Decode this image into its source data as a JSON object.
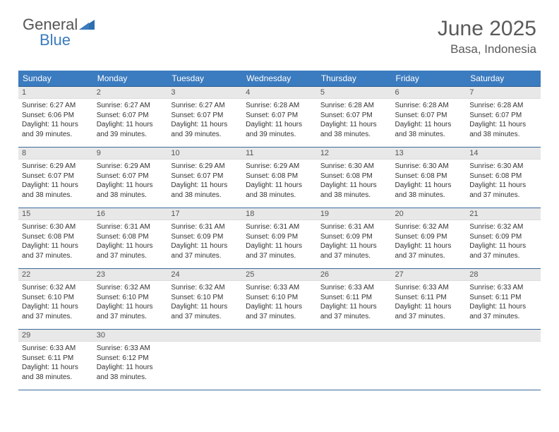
{
  "brand": {
    "line1": "General",
    "line2": "Blue"
  },
  "title": "June 2025",
  "location": "Basa, Indonesia",
  "colors": {
    "header_bg": "#3b7bbf",
    "header_text": "#ffffff",
    "daynum_bg": "#e8e8e8",
    "row_border": "#3b6a9a",
    "body_text": "#333333",
    "title_text": "#5a5a5a"
  },
  "weekdays": [
    "Sunday",
    "Monday",
    "Tuesday",
    "Wednesday",
    "Thursday",
    "Friday",
    "Saturday"
  ],
  "weeks": [
    [
      {
        "n": "1",
        "sr": "Sunrise: 6:27 AM",
        "ss": "Sunset: 6:06 PM",
        "d1": "Daylight: 11 hours",
        "d2": "and 39 minutes."
      },
      {
        "n": "2",
        "sr": "Sunrise: 6:27 AM",
        "ss": "Sunset: 6:07 PM",
        "d1": "Daylight: 11 hours",
        "d2": "and 39 minutes."
      },
      {
        "n": "3",
        "sr": "Sunrise: 6:27 AM",
        "ss": "Sunset: 6:07 PM",
        "d1": "Daylight: 11 hours",
        "d2": "and 39 minutes."
      },
      {
        "n": "4",
        "sr": "Sunrise: 6:28 AM",
        "ss": "Sunset: 6:07 PM",
        "d1": "Daylight: 11 hours",
        "d2": "and 39 minutes."
      },
      {
        "n": "5",
        "sr": "Sunrise: 6:28 AM",
        "ss": "Sunset: 6:07 PM",
        "d1": "Daylight: 11 hours",
        "d2": "and 38 minutes."
      },
      {
        "n": "6",
        "sr": "Sunrise: 6:28 AM",
        "ss": "Sunset: 6:07 PM",
        "d1": "Daylight: 11 hours",
        "d2": "and 38 minutes."
      },
      {
        "n": "7",
        "sr": "Sunrise: 6:28 AM",
        "ss": "Sunset: 6:07 PM",
        "d1": "Daylight: 11 hours",
        "d2": "and 38 minutes."
      }
    ],
    [
      {
        "n": "8",
        "sr": "Sunrise: 6:29 AM",
        "ss": "Sunset: 6:07 PM",
        "d1": "Daylight: 11 hours",
        "d2": "and 38 minutes."
      },
      {
        "n": "9",
        "sr": "Sunrise: 6:29 AM",
        "ss": "Sunset: 6:07 PM",
        "d1": "Daylight: 11 hours",
        "d2": "and 38 minutes."
      },
      {
        "n": "10",
        "sr": "Sunrise: 6:29 AM",
        "ss": "Sunset: 6:07 PM",
        "d1": "Daylight: 11 hours",
        "d2": "and 38 minutes."
      },
      {
        "n": "11",
        "sr": "Sunrise: 6:29 AM",
        "ss": "Sunset: 6:08 PM",
        "d1": "Daylight: 11 hours",
        "d2": "and 38 minutes."
      },
      {
        "n": "12",
        "sr": "Sunrise: 6:30 AM",
        "ss": "Sunset: 6:08 PM",
        "d1": "Daylight: 11 hours",
        "d2": "and 38 minutes."
      },
      {
        "n": "13",
        "sr": "Sunrise: 6:30 AM",
        "ss": "Sunset: 6:08 PM",
        "d1": "Daylight: 11 hours",
        "d2": "and 38 minutes."
      },
      {
        "n": "14",
        "sr": "Sunrise: 6:30 AM",
        "ss": "Sunset: 6:08 PM",
        "d1": "Daylight: 11 hours",
        "d2": "and 37 minutes."
      }
    ],
    [
      {
        "n": "15",
        "sr": "Sunrise: 6:30 AM",
        "ss": "Sunset: 6:08 PM",
        "d1": "Daylight: 11 hours",
        "d2": "and 37 minutes."
      },
      {
        "n": "16",
        "sr": "Sunrise: 6:31 AM",
        "ss": "Sunset: 6:08 PM",
        "d1": "Daylight: 11 hours",
        "d2": "and 37 minutes."
      },
      {
        "n": "17",
        "sr": "Sunrise: 6:31 AM",
        "ss": "Sunset: 6:09 PM",
        "d1": "Daylight: 11 hours",
        "d2": "and 37 minutes."
      },
      {
        "n": "18",
        "sr": "Sunrise: 6:31 AM",
        "ss": "Sunset: 6:09 PM",
        "d1": "Daylight: 11 hours",
        "d2": "and 37 minutes."
      },
      {
        "n": "19",
        "sr": "Sunrise: 6:31 AM",
        "ss": "Sunset: 6:09 PM",
        "d1": "Daylight: 11 hours",
        "d2": "and 37 minutes."
      },
      {
        "n": "20",
        "sr": "Sunrise: 6:32 AM",
        "ss": "Sunset: 6:09 PM",
        "d1": "Daylight: 11 hours",
        "d2": "and 37 minutes."
      },
      {
        "n": "21",
        "sr": "Sunrise: 6:32 AM",
        "ss": "Sunset: 6:09 PM",
        "d1": "Daylight: 11 hours",
        "d2": "and 37 minutes."
      }
    ],
    [
      {
        "n": "22",
        "sr": "Sunrise: 6:32 AM",
        "ss": "Sunset: 6:10 PM",
        "d1": "Daylight: 11 hours",
        "d2": "and 37 minutes."
      },
      {
        "n": "23",
        "sr": "Sunrise: 6:32 AM",
        "ss": "Sunset: 6:10 PM",
        "d1": "Daylight: 11 hours",
        "d2": "and 37 minutes."
      },
      {
        "n": "24",
        "sr": "Sunrise: 6:32 AM",
        "ss": "Sunset: 6:10 PM",
        "d1": "Daylight: 11 hours",
        "d2": "and 37 minutes."
      },
      {
        "n": "25",
        "sr": "Sunrise: 6:33 AM",
        "ss": "Sunset: 6:10 PM",
        "d1": "Daylight: 11 hours",
        "d2": "and 37 minutes."
      },
      {
        "n": "26",
        "sr": "Sunrise: 6:33 AM",
        "ss": "Sunset: 6:11 PM",
        "d1": "Daylight: 11 hours",
        "d2": "and 37 minutes."
      },
      {
        "n": "27",
        "sr": "Sunrise: 6:33 AM",
        "ss": "Sunset: 6:11 PM",
        "d1": "Daylight: 11 hours",
        "d2": "and 37 minutes."
      },
      {
        "n": "28",
        "sr": "Sunrise: 6:33 AM",
        "ss": "Sunset: 6:11 PM",
        "d1": "Daylight: 11 hours",
        "d2": "and 37 minutes."
      }
    ],
    [
      {
        "n": "29",
        "sr": "Sunrise: 6:33 AM",
        "ss": "Sunset: 6:11 PM",
        "d1": "Daylight: 11 hours",
        "d2": "and 38 minutes."
      },
      {
        "n": "30",
        "sr": "Sunrise: 6:33 AM",
        "ss": "Sunset: 6:12 PM",
        "d1": "Daylight: 11 hours",
        "d2": "and 38 minutes."
      },
      null,
      null,
      null,
      null,
      null
    ]
  ]
}
